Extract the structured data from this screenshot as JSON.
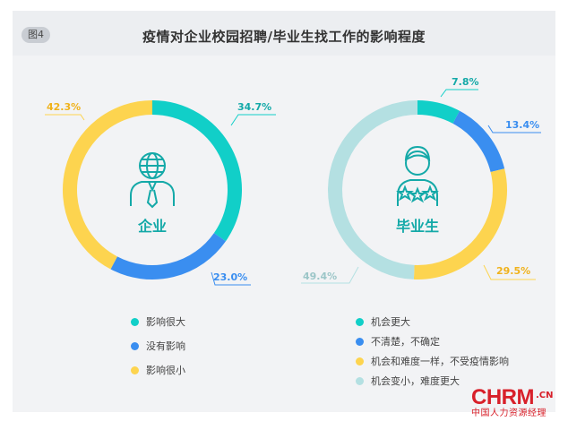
{
  "header": {
    "figure_label": "图4",
    "title": "疫情对企业校园招聘/毕业生找工作的影响程度"
  },
  "chart_data": [
    {
      "type": "pie",
      "center_label": "企业",
      "slices": [
        {
          "label": "影响很大",
          "value": 34.7,
          "display": "34.7%",
          "color": "#11cfc8"
        },
        {
          "label": "没有影响",
          "value": 23.0,
          "display": "23.0%",
          "color": "#3a8ef0"
        },
        {
          "label": "影响很小",
          "value": 42.3,
          "display": "42.3%",
          "color": "#fdd44f"
        }
      ],
      "legend": [
        "影响很大",
        "没有影响",
        "影响很小"
      ]
    },
    {
      "type": "pie",
      "center_label": "毕业生",
      "slices": [
        {
          "label": "机会更大",
          "value": 7.8,
          "display": "7.8%",
          "color": "#11cfc8"
        },
        {
          "label": "不清楚，不确定",
          "value": 13.4,
          "display": "13.4%",
          "color": "#3a8ef0"
        },
        {
          "label": "机会和难度一样，不受疫情影响",
          "value": 29.5,
          "display": "29.5%",
          "color": "#fdd44f"
        },
        {
          "label": "机会变小，难度更大",
          "value": 49.4,
          "display": "49.4%",
          "color": "#b4e0e2"
        }
      ],
      "legend": [
        "机会更大",
        "不清楚，不确定",
        "机会和难度一样，不受疫情影响",
        "机会变小，难度更大"
      ]
    }
  ],
  "colors": {
    "icon": "#14a9a8",
    "label_text": "#14a9a8",
    "label_yellow": "#f0b21b",
    "label_blue": "#3a8ef0",
    "label_lightblue": "#9cc6c8"
  },
  "icons": [
    "globe-head-icon",
    "graduate-icon"
  ],
  "logo": {
    "main": "CHRM",
    "suffix": ".CN",
    "subtitle": "中国人力资源经理"
  }
}
